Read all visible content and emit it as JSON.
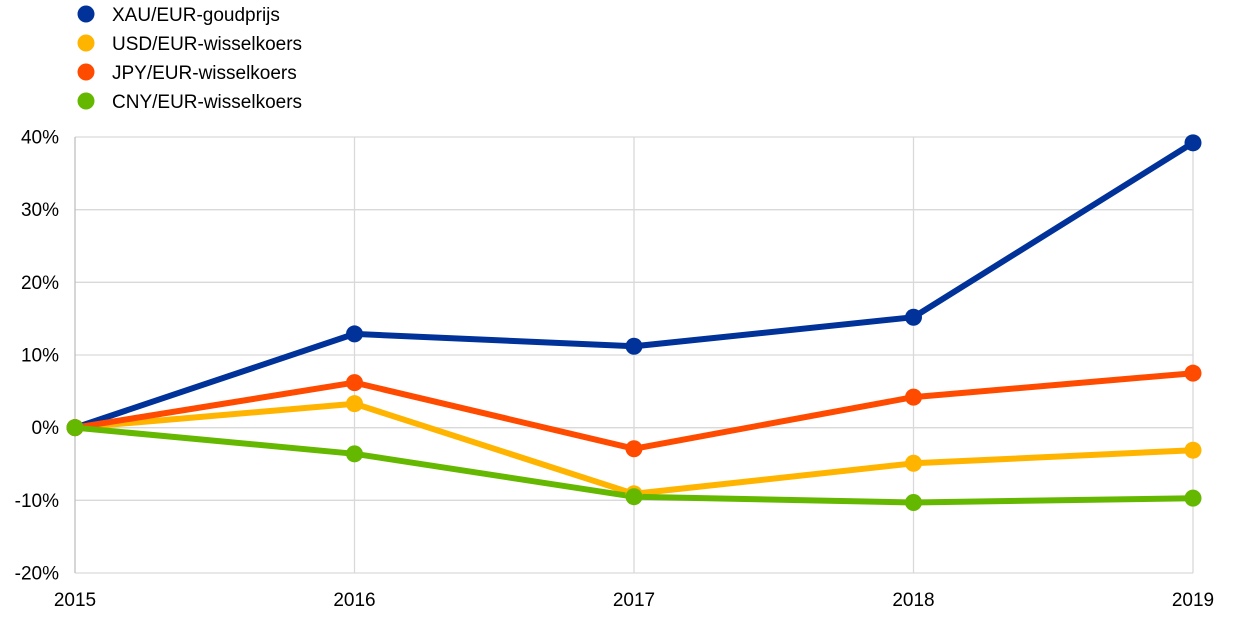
{
  "chart_data": {
    "type": "line",
    "title": "",
    "xlabel": "",
    "ylabel": "",
    "x": [
      "2015",
      "2016",
      "2017",
      "2018",
      "2019"
    ],
    "ylim": [
      -20,
      40
    ],
    "yticks": [
      40,
      30,
      20,
      10,
      0,
      -10,
      -20
    ],
    "ytick_labels": [
      "40%",
      "30%",
      "20%",
      "10%",
      "0%",
      "-10%",
      "-20%"
    ],
    "grid": "vertical and horizontal",
    "legend_position": "top-left",
    "series": [
      {
        "name": "XAU/EUR-goudprijs",
        "color": "#003299",
        "values": [
          0,
          12.9,
          11.2,
          15.2,
          39.2
        ]
      },
      {
        "name": "USD/EUR-wisselkoers",
        "color": "#FFB400",
        "values": [
          0,
          3.3,
          -9.1,
          -4.9,
          -3.1
        ]
      },
      {
        "name": "JPY/EUR-wisselkoers",
        "color": "#FF4B00",
        "values": [
          0,
          6.2,
          -2.9,
          4.2,
          7.5
        ]
      },
      {
        "name": "CNY/EUR-wisselkoers",
        "color": "#65B800",
        "values": [
          0,
          -3.6,
          -9.5,
          -10.3,
          -9.7
        ]
      }
    ]
  }
}
